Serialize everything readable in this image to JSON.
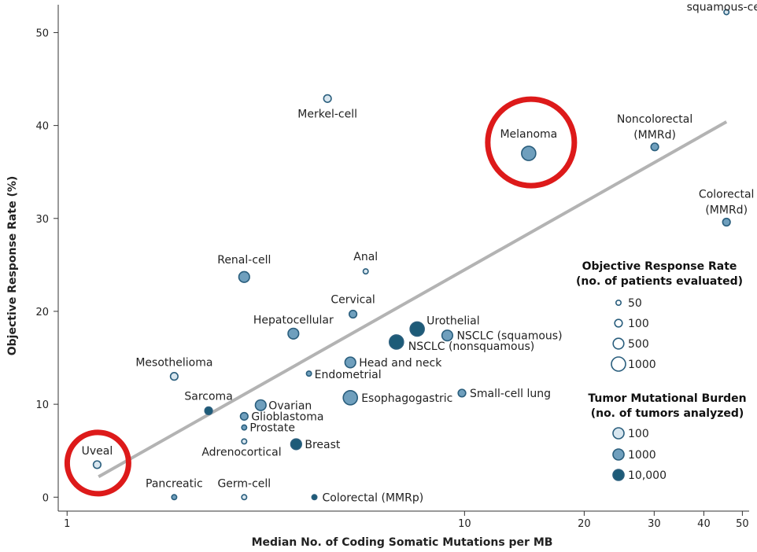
{
  "chart_data": {
    "type": "scatter",
    "title": "",
    "xlabel": "Median No. of Coding Somatic Mutations per MB",
    "ylabel": "Objective Response Rate (%)",
    "x_scale": "log",
    "xlim": [
      0.95,
      52
    ],
    "ylim": [
      -1.5,
      53
    ],
    "x_ticks": [
      1,
      10,
      20,
      30,
      40,
      50
    ],
    "x_tick_labels": [
      "1",
      "10",
      "20",
      "30",
      "40",
      "50"
    ],
    "y_ticks": [
      0,
      10,
      20,
      30,
      40,
      50
    ],
    "y_tick_labels": [
      "0",
      "10",
      "20",
      "30",
      "40",
      "50"
    ],
    "grid": false,
    "trend_line": {
      "x": [
        1.2,
        45.6
      ],
      "y": [
        2.2,
        40.4
      ]
    },
    "points": [
      {
        "label": "Cutaneous\nsquamous-cell",
        "x": 45.6,
        "y": 52.2,
        "patients": 50,
        "tmb_tier": "100"
      },
      {
        "label": "Merkel-cell",
        "x": 4.52,
        "y": 42.9,
        "patients": 100,
        "tmb_tier": "100"
      },
      {
        "label": "Melanoma",
        "x": 14.5,
        "y": 37.0,
        "patients": 1000,
        "tmb_tier": "1000"
      },
      {
        "label": "Noncolorectal\n(MMRd)",
        "x": 30.1,
        "y": 37.7,
        "patients": 100,
        "tmb_tier": "1000"
      },
      {
        "label": "Colorectal\n(MMRd)",
        "x": 45.6,
        "y": 29.6,
        "patients": 100,
        "tmb_tier": "1000"
      },
      {
        "label": "Renal-cell",
        "x": 2.79,
        "y": 23.7,
        "patients": 500,
        "tmb_tier": "1000"
      },
      {
        "label": "Anal",
        "x": 5.64,
        "y": 24.3,
        "patients": 50,
        "tmb_tier": "100"
      },
      {
        "label": "Cervical",
        "x": 5.24,
        "y": 19.7,
        "patients": 100,
        "tmb_tier": "1000"
      },
      {
        "label": "Hepatocellular",
        "x": 3.71,
        "y": 17.6,
        "patients": 500,
        "tmb_tier": "1000"
      },
      {
        "label": "Urothelial",
        "x": 7.6,
        "y": 18.1,
        "patients": 1000,
        "tmb_tier": "10,000"
      },
      {
        "label": "NSCLC (squamous)",
        "x": 9.05,
        "y": 17.4,
        "patients": 500,
        "tmb_tier": "1000"
      },
      {
        "label": "NSCLC (nonsquamous)",
        "x": 6.74,
        "y": 16.7,
        "patients": 1000,
        "tmb_tier": "10,000"
      },
      {
        "label": "Head and neck",
        "x": 5.16,
        "y": 14.5,
        "patients": 500,
        "tmb_tier": "1000"
      },
      {
        "label": "Mesothelioma",
        "x": 1.86,
        "y": 13.0,
        "patients": 100,
        "tmb_tier": "100"
      },
      {
        "label": "Endometrial",
        "x": 4.06,
        "y": 13.3,
        "patients": 50,
        "tmb_tier": "1000"
      },
      {
        "label": "Esophagogastric",
        "x": 5.16,
        "y": 10.7,
        "patients": 1000,
        "tmb_tier": "1000"
      },
      {
        "label": "Small-cell lung",
        "x": 9.85,
        "y": 11.2,
        "patients": 100,
        "tmb_tier": "1000"
      },
      {
        "label": "Sarcoma",
        "x": 2.27,
        "y": 9.3,
        "patients": 100,
        "tmb_tier": "10,000"
      },
      {
        "label": "Ovarian",
        "x": 3.07,
        "y": 9.9,
        "patients": 500,
        "tmb_tier": "1000"
      },
      {
        "label": "Glioblastoma",
        "x": 2.79,
        "y": 8.7,
        "patients": 100,
        "tmb_tier": "1000"
      },
      {
        "label": "Prostate",
        "x": 2.79,
        "y": 7.5,
        "patients": 50,
        "tmb_tier": "1000"
      },
      {
        "label": "Adrenocortical",
        "x": 2.79,
        "y": 6.0,
        "patients": 50,
        "tmb_tier": "100"
      },
      {
        "label": "Breast",
        "x": 3.77,
        "y": 5.7,
        "patients": 500,
        "tmb_tier": "10,000"
      },
      {
        "label": "Uveal",
        "x": 1.19,
        "y": 3.5,
        "patients": 100,
        "tmb_tier": "100"
      },
      {
        "label": "Pancreatic",
        "x": 1.86,
        "y": 0.0,
        "patients": 50,
        "tmb_tier": "1000"
      },
      {
        "label": "Germ-cell",
        "x": 2.79,
        "y": 0.0,
        "patients": 50,
        "tmb_tier": "100"
      },
      {
        "label": "Colorectal (MMRp)",
        "x": 4.19,
        "y": 0.0,
        "patients": 50,
        "tmb_tier": "10,000"
      }
    ],
    "highlighted": [
      "Melanoma",
      "Uveal"
    ],
    "legend": {
      "placement": "right",
      "size_title": [
        "Objective Response Rate",
        "(no. of patients evaluated)"
      ],
      "size_items": [
        "50",
        "100",
        "500",
        "1000"
      ],
      "color_title": [
        "Tumor Mutational Burden",
        "(no. of tumors analyzed)"
      ],
      "color_items": [
        "100",
        "1000",
        "10,000"
      ]
    },
    "colors": {
      "tier_100": "#d8e6ef",
      "tier_1000": "#6f9fbd",
      "tier_10000": "#1d5b78",
      "stroke": "#2a5e7d",
      "trend": "#b3b3b3",
      "highlight": "#dd1a1a"
    }
  }
}
